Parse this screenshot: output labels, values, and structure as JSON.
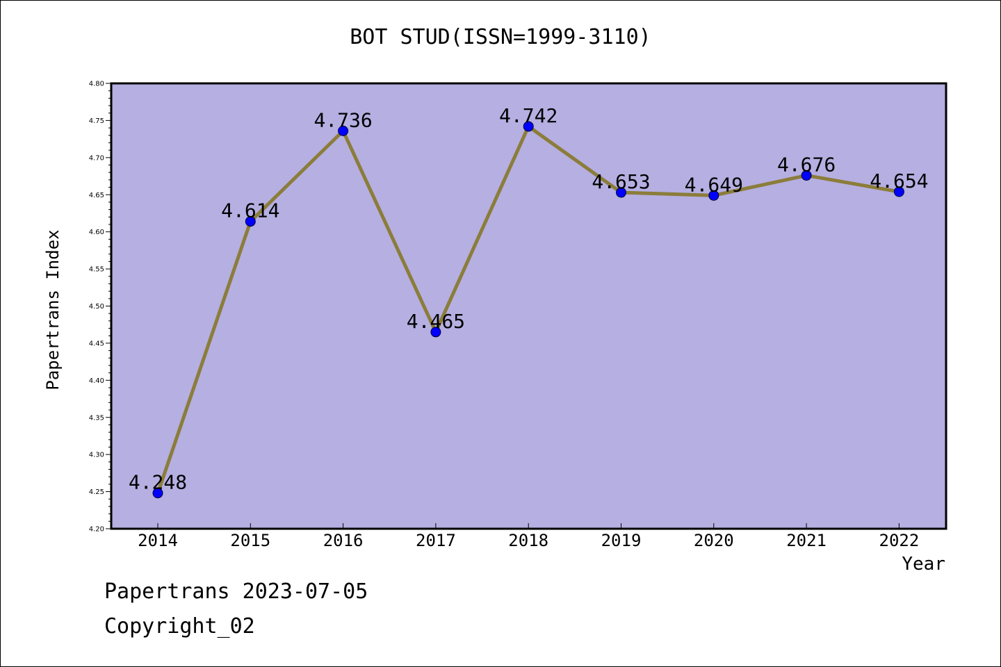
{
  "chart_data": {
    "type": "line",
    "title": "BOT STUD(ISSN=1999-3110)",
    "xlabel": "Year",
    "ylabel": "Papertrans Index",
    "categories": [
      "2014",
      "2015",
      "2016",
      "2017",
      "2018",
      "2019",
      "2020",
      "2021",
      "2022"
    ],
    "values": [
      4.248,
      4.614,
      4.736,
      4.465,
      4.742,
      4.653,
      4.649,
      4.676,
      4.654
    ],
    "data_labels": [
      "4.248",
      "4.614",
      "4.736",
      "4.465",
      "4.742",
      "4.653",
      "4.649",
      "4.676",
      "4.654"
    ],
    "ylim": [
      4.2,
      4.8
    ],
    "yticks": [
      "4.20",
      "4.25",
      "4.30",
      "4.35",
      "4.40",
      "4.45",
      "4.50",
      "4.55",
      "4.60",
      "4.65",
      "4.70",
      "4.75",
      "4.80"
    ],
    "grid": false,
    "colors": {
      "plot_background": "#b5afe2",
      "line": "#8b7d3a",
      "marker": "#0000ff"
    }
  },
  "footer": {
    "date_text": "Papertrans 2023-07-05",
    "copyright_text": "Copyright_02"
  }
}
